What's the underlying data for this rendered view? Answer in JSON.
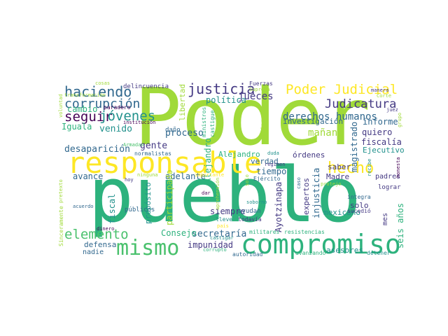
{
  "palette": {
    "lime": "#a0da39",
    "green": "#2db27d",
    "teal": "#21918c",
    "blue": "#31688e",
    "indigo": "#443983",
    "purple": "#440154",
    "yellow": "#fde725",
    "mint": "#4ac16d",
    "cyan": "#1fa187"
  },
  "words": [
    "Poder",
    "pueblo",
    "responsable",
    "compromiso",
    "mismo",
    "justicia",
    "Poder Judicial",
    "haciendo",
    "corrupción",
    "seguir",
    "jóvenes",
    "hecho",
    "elemento",
    "Judicatura",
    "derechos humanos",
    "jueces",
    "política",
    "desaparición",
    "gente",
    "venido",
    "proceso",
    "cambio",
    "Iguala",
    "informe",
    "quiero",
    "fiscalía",
    "Ejecutivo",
    "mañana",
    "investigación",
    "magistrado",
    "Alejandro",
    "libertad",
    "verdad",
    "bien",
    "órdenes",
    "tiempo",
    "saber",
    "Madre",
    "solo",
    "seis años",
    "mexicano",
    "injusticia",
    "expertos",
    "Ayotzinapa",
    "secretaría",
    "impunidad",
    "Consejo",
    "siempre",
    "participado",
    "adelante",
    "avance",
    "fiscal",
    "propósito",
    "públicos",
    "defensa",
    "nadie",
    "asesores",
    "padres",
    "lograr",
    "mes",
    "delincuencia",
    "Fuerzas",
    "Suprema",
    "cosas",
    "transformación",
    "institución",
    "paradero",
    "daño",
    "ministros",
    "castigue",
    "Armadas",
    "normalistas",
    "gobierno",
    "regimen",
    "duda",
    "Ejército",
    "soborno",
    "ayudan",
    "todavía",
    "militares",
    "resistencias",
    "autoridad",
    "avanzando",
    "detener",
    "integra",
    "sucedió",
    "protejo",
    "recibe",
    "honesta",
    "grupo",
    "manera",
    "Corte",
    "juez",
    "lleve",
    "país",
    "dinero",
    "corrupto",
    "acuerdo",
    "Sinceramente",
    "pretexto",
    "voluntad",
    "hoy",
    "ninguna",
    "importante",
    "dar",
    "tenemos",
    "llegar",
    "queda",
    "solo",
    "caso",
    "Segundo",
    "sistemático",
    "aprehensión",
    "encontrar",
    "castigar",
    "presente",
    "sentido",
    "vez",
    "claro",
    "ser",
    "vi"
  ]
}
